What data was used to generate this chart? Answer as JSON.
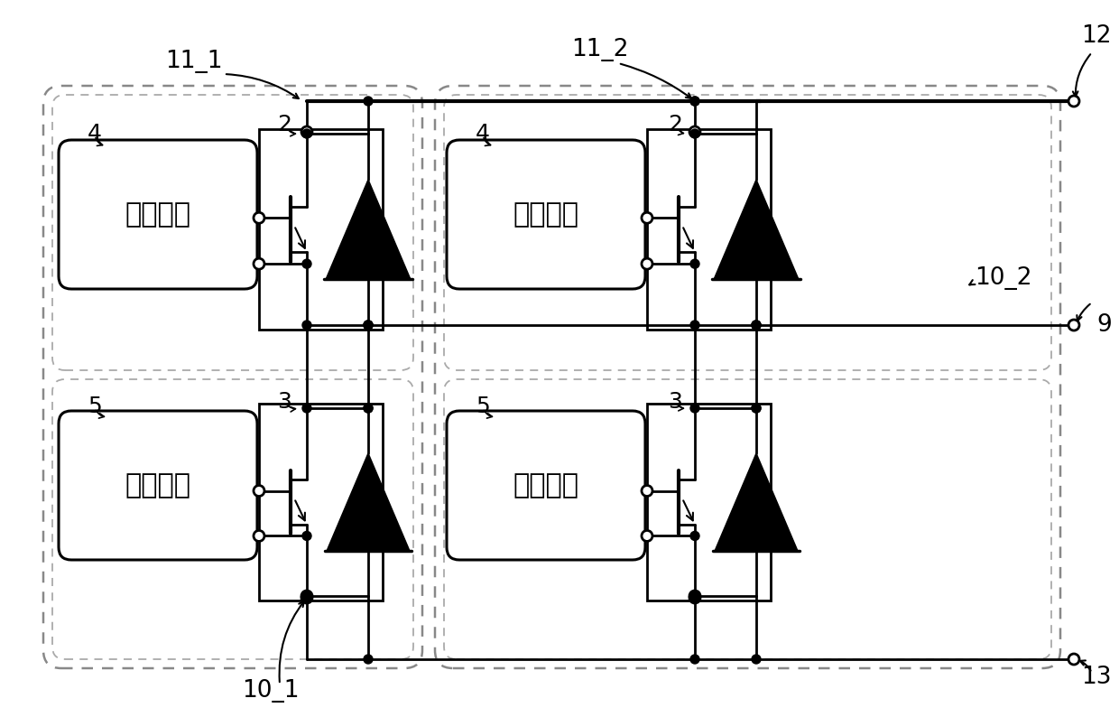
{
  "bg_color": "#ffffff",
  "fig_width": 12.4,
  "fig_height": 7.94,
  "dpi": 100,
  "text_drive": "驱动电路",
  "label_11_1": "11_1",
  "label_11_2": "11_2",
  "label_12": "12",
  "label_9": "9",
  "label_13": "13",
  "label_10_1": "10_1",
  "label_10_2": "10_2",
  "label_4a": "4",
  "label_5a": "5",
  "label_2a": "2",
  "label_3a": "3",
  "label_4b": "4",
  "label_5b": "5",
  "label_2b": "2",
  "label_3b": "3"
}
